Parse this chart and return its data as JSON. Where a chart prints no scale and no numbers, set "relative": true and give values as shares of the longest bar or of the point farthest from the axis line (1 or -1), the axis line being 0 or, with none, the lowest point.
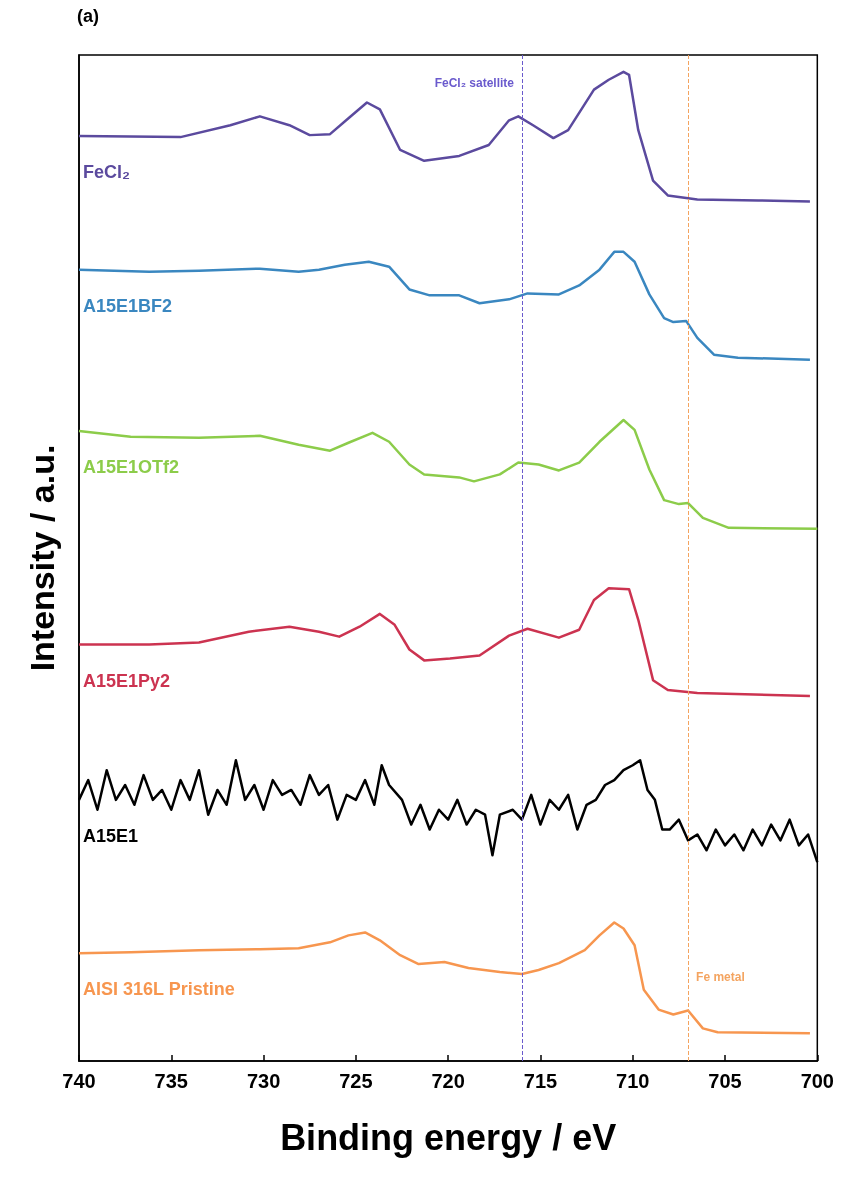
{
  "chart_data": {
    "type": "line",
    "relative": true,
    "xlabel": "Binding energy / eV",
    "ylabel": "Intensity / a.u.",
    "annotations": [
      "(a)"
    ],
    "xlim": [
      740,
      700
    ],
    "xticks": [
      740,
      735,
      730,
      725,
      720,
      715,
      710,
      705,
      700
    ],
    "grid": false,
    "legend": false,
    "marker": "none",
    "line_style": "solid",
    "ref_lines": [
      {
        "axis": "x",
        "value": 716,
        "label": "FeCl₂ satellite",
        "color": "#6a5acd",
        "line_style": "dashed"
      },
      {
        "axis": "x",
        "value": 707,
        "label": "Fe metal",
        "color": "#f4a460",
        "line_style": "dashed"
      }
    ],
    "series": [
      {
        "name": "FeCl₂",
        "color": "#5b4a9e",
        "x": [
          740,
          734.5,
          731.8,
          730.2,
          728.6,
          727.5,
          726.4,
          725.4,
          724.4,
          723.7,
          722.6,
          721.3,
          719.4,
          717.8,
          716.7,
          716.2,
          715.4,
          714.3,
          713.5,
          712.1,
          711.3,
          710.5,
          710.2,
          709.7,
          708.9,
          708.1,
          706.5,
          703.2,
          700.4
        ],
        "values": [
          0.935,
          0.934,
          0.946,
          0.955,
          0.946,
          0.936,
          0.937,
          0.953,
          0.969,
          0.962,
          0.921,
          0.91,
          0.915,
          0.926,
          0.951,
          0.955,
          0.946,
          0.933,
          0.941,
          0.982,
          0.992,
          1,
          0.997,
          0.941,
          0.89,
          0.875,
          0.871,
          0.87,
          0.869
        ]
      },
      {
        "name": "A15E1BF2",
        "color": "#3a87c0",
        "x": [
          740,
          736.2,
          733.5,
          730.2,
          728.1,
          727,
          725.6,
          724.3,
          723.2,
          722.1,
          721,
          719.4,
          718.3,
          716.7,
          715.7,
          714,
          712.9,
          711.8,
          711,
          710.5,
          709.9,
          709.1,
          708.3,
          707.8,
          707.1,
          706.5,
          705.6,
          704.3,
          700.4
        ],
        "values": [
          0.8,
          0.798,
          0.799,
          0.801,
          0.798,
          0.8,
          0.805,
          0.808,
          0.803,
          0.78,
          0.774,
          0.774,
          0.766,
          0.77,
          0.776,
          0.775,
          0.784,
          0.8,
          0.818,
          0.818,
          0.808,
          0.775,
          0.751,
          0.747,
          0.748,
          0.731,
          0.714,
          0.711,
          0.709
        ]
      },
      {
        "name": "A15E1OTf2",
        "color": "#8ccc4a",
        "x": [
          740,
          737.2,
          733.5,
          730.2,
          728.1,
          726.4,
          725.4,
          724.1,
          723.2,
          722.1,
          721.3,
          719.4,
          718.6,
          717.2,
          716.2,
          715.1,
          714,
          712.9,
          711.8,
          710.5,
          709.9,
          709.1,
          708.3,
          707.5,
          707,
          706.2,
          704.8,
          700
        ],
        "values": [
          0.637,
          0.631,
          0.63,
          0.632,
          0.623,
          0.617,
          0.625,
          0.635,
          0.626,
          0.603,
          0.593,
          0.59,
          0.586,
          0.593,
          0.605,
          0.603,
          0.597,
          0.605,
          0.626,
          0.648,
          0.638,
          0.598,
          0.567,
          0.563,
          0.564,
          0.549,
          0.539,
          0.538
        ]
      },
      {
        "name": "A15E1Py2",
        "color": "#cc3350",
        "x": [
          740,
          736.2,
          733.5,
          730.8,
          728.6,
          727,
          725.9,
          724.8,
          723.7,
          722.9,
          722.1,
          721.3,
          719.9,
          718.3,
          716.7,
          715.7,
          714,
          712.9,
          712.1,
          711.3,
          710.2,
          709.7,
          708.9,
          708.1,
          706.5,
          700.4
        ],
        "values": [
          0.421,
          0.421,
          0.423,
          0.434,
          0.439,
          0.434,
          0.429,
          0.439,
          0.452,
          0.441,
          0.416,
          0.405,
          0.407,
          0.41,
          0.43,
          0.437,
          0.428,
          0.436,
          0.466,
          0.478,
          0.477,
          0.446,
          0.385,
          0.375,
          0.372,
          0.369
        ]
      },
      {
        "name": "A15E1",
        "color": "#000000",
        "x": [
          740,
          739.5,
          739,
          738.5,
          738,
          737.5,
          737,
          736.5,
          736,
          735.5,
          735,
          734.5,
          734,
          733.5,
          733,
          732.5,
          732,
          731.5,
          731,
          730.5,
          730,
          729.5,
          729,
          728.5,
          728,
          727.5,
          727,
          726.5,
          726,
          725.5,
          725,
          724.5,
          724,
          723.6,
          723.2,
          722.5,
          722,
          721.5,
          721,
          720.5,
          720,
          719.5,
          719,
          718.5,
          718,
          717.6,
          717.2,
          716.5,
          716,
          715.5,
          715,
          714.5,
          714,
          713.5,
          713,
          712.5,
          712,
          711.5,
          711,
          710.5,
          710,
          709.6,
          709.2,
          708.8,
          708.4,
          708,
          707.5,
          707,
          706.5,
          706,
          705.5,
          705,
          704.5,
          704,
          703.5,
          703,
          702.5,
          702,
          701.5,
          701,
          700.5,
          700
        ],
        "values": [
          0.264,
          0.284,
          0.254,
          0.294,
          0.264,
          0.279,
          0.259,
          0.289,
          0.264,
          0.274,
          0.254,
          0.284,
          0.264,
          0.294,
          0.249,
          0.274,
          0.259,
          0.304,
          0.264,
          0.279,
          0.254,
          0.284,
          0.269,
          0.274,
          0.259,
          0.289,
          0.269,
          0.279,
          0.244,
          0.269,
          0.264,
          0.284,
          0.259,
          0.299,
          0.279,
          0.264,
          0.239,
          0.259,
          0.234,
          0.254,
          0.244,
          0.264,
          0.239,
          0.254,
          0.249,
          0.208,
          0.249,
          0.254,
          0.244,
          0.269,
          0.239,
          0.264,
          0.254,
          0.269,
          0.234,
          0.259,
          0.264,
          0.279,
          0.284,
          0.294,
          0.299,
          0.304,
          0.274,
          0.264,
          0.234,
          0.234,
          0.244,
          0.223,
          0.229,
          0.213,
          0.234,
          0.218,
          0.229,
          0.213,
          0.234,
          0.218,
          0.239,
          0.223,
          0.244,
          0.218,
          0.229,
          0.201
        ]
      },
      {
        "name": "AISI 316L Pristine",
        "color": "#f7964f",
        "x": [
          740,
          737.2,
          733.5,
          730.2,
          728.1,
          726.4,
          725.4,
          724.5,
          723.7,
          722.6,
          721.6,
          720.2,
          718.9,
          717.2,
          716,
          715.1,
          714,
          712.6,
          711.8,
          711,
          710.5,
          709.9,
          709.4,
          708.6,
          707.8,
          707,
          706.2,
          705.4,
          700.4
        ],
        "values": [
          0.109,
          0.11,
          0.112,
          0.113,
          0.114,
          0.12,
          0.127,
          0.13,
          0.122,
          0.107,
          0.098,
          0.1,
          0.094,
          0.09,
          0.088,
          0.092,
          0.099,
          0.112,
          0.127,
          0.14,
          0.134,
          0.117,
          0.072,
          0.052,
          0.047,
          0.051,
          0.033,
          0.029,
          0.028
        ]
      }
    ]
  }
}
